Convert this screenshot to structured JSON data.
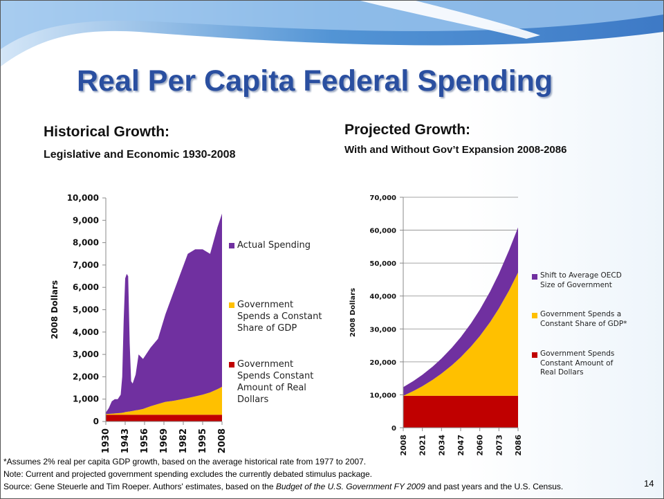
{
  "title": "Real Per Capita Federal Spending",
  "footnotes": {
    "assumption": "*Assumes 2% real per capita GDP growth,  based on the average historical rate from 1977 to 2007.",
    "note": "Note:  Current and  projected government spending excludes the currently debated stimulus package.",
    "source_start": "Source: Gene Steuerle and Tim Roeper.  Authors' estimates, based on the ",
    "source_italic": "Budget of the U.S. Government FY 2009",
    "source_end": "  and past years and the U.S. Census."
  },
  "page_number": "14",
  "chart_data": [
    {
      "type": "area",
      "stacked": true,
      "title": "Historical Growth:",
      "subtitle": "Legislative and Economic 1930-2008",
      "ylabel": "2008 Dollars",
      "grid": false,
      "x": [
        1930,
        1932,
        1934,
        1936,
        1938,
        1940,
        1941,
        1942,
        1943,
        1944,
        1945,
        1946,
        1947,
        1948,
        1950,
        1952,
        1955,
        1960,
        1965,
        1970,
        1975,
        1980,
        1985,
        1990,
        1995,
        2000,
        2005,
        2008
      ],
      "series": [
        {
          "name": "Actual Spending",
          "color": "#7030a0",
          "values": [
            70,
            260,
            550,
            640,
            630,
            820,
            1610,
            4100,
            5980,
            6170,
            6060,
            3050,
            1340,
            1230,
            1600,
            2480,
            2240,
            2620,
            2920,
            3920,
            4780,
            5620,
            6450,
            6580,
            6500,
            6200,
            7250,
            7750
          ]
        },
        {
          "name": "Government Spends a Constant Share of GDP",
          "color": "#ffc000",
          "values": [
            30,
            40,
            50,
            60,
            70,
            80,
            90,
            100,
            120,
            130,
            140,
            150,
            160,
            170,
            200,
            220,
            260,
            380,
            480,
            580,
            620,
            680,
            750,
            820,
            900,
            1000,
            1150,
            1250
          ]
        },
        {
          "name": "Government Spends Constant Amount of Real Dollars",
          "color": "#c00000",
          "values": [
            300,
            300,
            300,
            300,
            300,
            300,
            300,
            300,
            300,
            300,
            300,
            300,
            300,
            300,
            300,
            300,
            300,
            300,
            300,
            300,
            300,
            300,
            300,
            300,
            300,
            300,
            300,
            300
          ]
        }
      ],
      "xlim": [
        1930,
        2008
      ],
      "xticks": [
        1930,
        1943,
        1956,
        1969,
        1982,
        1995,
        2008
      ],
      "ylim": [
        0,
        10000
      ],
      "yticks": [
        0,
        {
          "value": 1000,
          "label": "1,000"
        },
        {
          "value": 2000,
          "label": "2,000"
        },
        {
          "value": 3000,
          "label": "3,000"
        },
        {
          "value": 4000,
          "label": "4,000"
        },
        {
          "value": 5000,
          "label": "5,000"
        },
        {
          "value": 6000,
          "label": "6,000"
        },
        {
          "value": 7000,
          "label": "7,000"
        },
        {
          "value": 8000,
          "label": "8,000"
        },
        {
          "value": 9000,
          "label": "9,000"
        },
        {
          "value": 10000,
          "label": "10,000"
        }
      ]
    },
    {
      "type": "area",
      "stacked": true,
      "title": "Projected Growth:",
      "subtitle": "With and Without Gov’t Expansion 2008-2086",
      "ylabel": "2008 Dollars",
      "grid": true,
      "x": [
        2008,
        2015,
        2021,
        2028,
        2034,
        2041,
        2047,
        2054,
        2060,
        2067,
        2073,
        2080,
        2086
      ],
      "series": [
        {
          "name": "Shift to Average OECD Size of Government",
          "color": "#7030a0",
          "values": [
            2620,
            3040,
            3460,
            4030,
            4590,
            5330,
            6060,
            7040,
            8010,
            9300,
            10570,
            12270,
            13680
          ]
        },
        {
          "name": "Government Spends a Constant Share of GDP*",
          "color": "#ffc000",
          "values": [
            0,
            1470,
            2920,
            4850,
            6730,
            9240,
            11690,
            14950,
            18130,
            22380,
            26530,
            32050,
            37460
          ]
        },
        {
          "name": "Government Spends Constant Amount of Real Dollars",
          "color": "#c00000",
          "values": [
            9700,
            9700,
            9700,
            9700,
            9700,
            9700,
            9700,
            9700,
            9700,
            9700,
            9700,
            9700,
            9700
          ]
        }
      ],
      "xlim": [
        2008,
        2086
      ],
      "xticks": [
        2008,
        2021,
        2034,
        2047,
        2060,
        2073,
        2086
      ],
      "ylim": [
        0,
        70000
      ],
      "yticks": [
        0,
        {
          "value": 10000,
          "label": "10,000"
        },
        {
          "value": 20000,
          "label": "20,000"
        },
        {
          "value": 30000,
          "label": "30,000"
        },
        {
          "value": 40000,
          "label": "40,000"
        },
        {
          "value": 50000,
          "label": "50,000"
        },
        {
          "value": 60000,
          "label": "60,000"
        },
        {
          "value": 70000,
          "label": "70,000"
        }
      ]
    }
  ]
}
